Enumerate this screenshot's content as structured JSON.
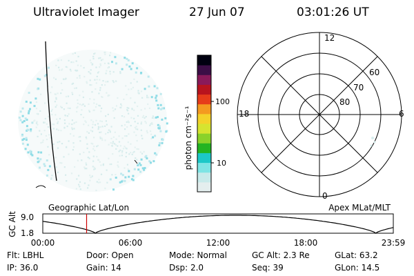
{
  "header": {
    "title": "Ultraviolet Imager",
    "date": "27 Jun 07",
    "time": "03:01:26 UT"
  },
  "colorbar": {
    "unit_label": "photon cm⁻²s⁻¹",
    "ticks": [
      "100",
      "10"
    ],
    "colors": [
      "#e4eeee",
      "#c8eaea",
      "#7ee4e4",
      "#1cc8c8",
      "#22b422",
      "#8ad22a",
      "#d6e430",
      "#f4d22a",
      "#f49a20",
      "#e63c1a",
      "#b8141e",
      "#8a1a5a",
      "#3c0e46",
      "#000010"
    ]
  },
  "polar_grid": {
    "mlt_labels": {
      "top": "12",
      "right": "6",
      "bottom": "0",
      "left": "18"
    },
    "lat_labels": [
      "60",
      "70",
      "80"
    ]
  },
  "timeline": {
    "left_title": "Geographic Lat/Lon",
    "right_title": "Apex MLat/MLT",
    "y_axis_label": "GC Alt",
    "y_ticks": [
      "9.0",
      "1.8"
    ],
    "x_ticks": [
      "00:00",
      "06:00",
      "12:00",
      "18:00",
      "23:59"
    ],
    "current_time_fraction": 0.125,
    "trace_color": "#000000",
    "cursor_color": "#cc0000"
  },
  "info": {
    "row1": {
      "flt": "Flt: LBHL",
      "door": "Door: Open",
      "mode": "Mode: Normal",
      "gcalt": "GC Alt: 2.3 Re",
      "glat": "GLat:  63.2"
    },
    "row2": {
      "ip": "IP: 36.0",
      "gain": "Gain: 14",
      "dsp": "Dsp:    2.0",
      "seq": "Seq: 39",
      "glon": "GLon:  14.5"
    }
  }
}
